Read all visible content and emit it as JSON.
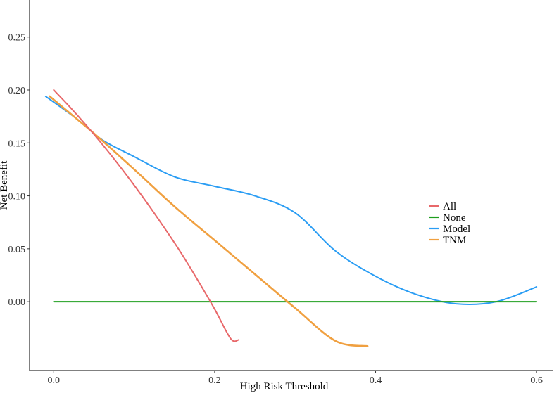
{
  "chart_data": {
    "type": "line",
    "xlabel": "High Risk Threshold",
    "ylabel": "Net Benefit",
    "xlim": [
      -0.03,
      0.62
    ],
    "ylim": [
      -0.065,
      0.285
    ],
    "x_ticks": [
      0.0,
      0.2,
      0.4,
      0.6
    ],
    "x_tick_labels": [
      "0.0",
      "0.2",
      "0.4",
      "0.6"
    ],
    "y_ticks": [
      0.0,
      0.05,
      0.1,
      0.15,
      0.2,
      0.25
    ],
    "y_tick_labels": [
      "0.00",
      "0.05",
      "0.10",
      "0.15",
      "0.20",
      "0.25"
    ],
    "grid": false,
    "legend_position": "right",
    "series": [
      {
        "name": "All",
        "color": "#E8686A",
        "x": [
          0.0,
          0.02,
          0.04,
          0.06,
          0.08,
          0.1,
          0.12,
          0.14,
          0.16,
          0.18,
          0.2,
          0.22,
          0.23
        ],
        "y": [
          0.2,
          0.184,
          0.167,
          0.149,
          0.13,
          0.11,
          0.089,
          0.067,
          0.044,
          0.019,
          -0.007,
          -0.035,
          -0.036
        ]
      },
      {
        "name": "None",
        "color": "#1E9E1E",
        "x": [
          0.0,
          0.6
        ],
        "y": [
          0.0,
          0.0
        ]
      },
      {
        "name": "Model",
        "color": "#2A9DF4",
        "x": [
          -0.01,
          0.03,
          0.06,
          0.1,
          0.15,
          0.2,
          0.25,
          0.3,
          0.35,
          0.4,
          0.45,
          0.5,
          0.55,
          0.6
        ],
        "y": [
          0.194,
          0.172,
          0.153,
          0.137,
          0.118,
          0.109,
          0.1,
          0.084,
          0.048,
          0.024,
          0.007,
          -0.002,
          0.0,
          0.014
        ]
      },
      {
        "name": "TNM",
        "color": "#F0A040",
        "x": [
          -0.005,
          0.05,
          0.1,
          0.15,
          0.2,
          0.25,
          0.3,
          0.35,
          0.39
        ],
        "y": [
          0.194,
          0.159,
          0.125,
          0.09,
          0.058,
          0.026,
          -0.006,
          -0.037,
          -0.042
        ]
      }
    ]
  }
}
